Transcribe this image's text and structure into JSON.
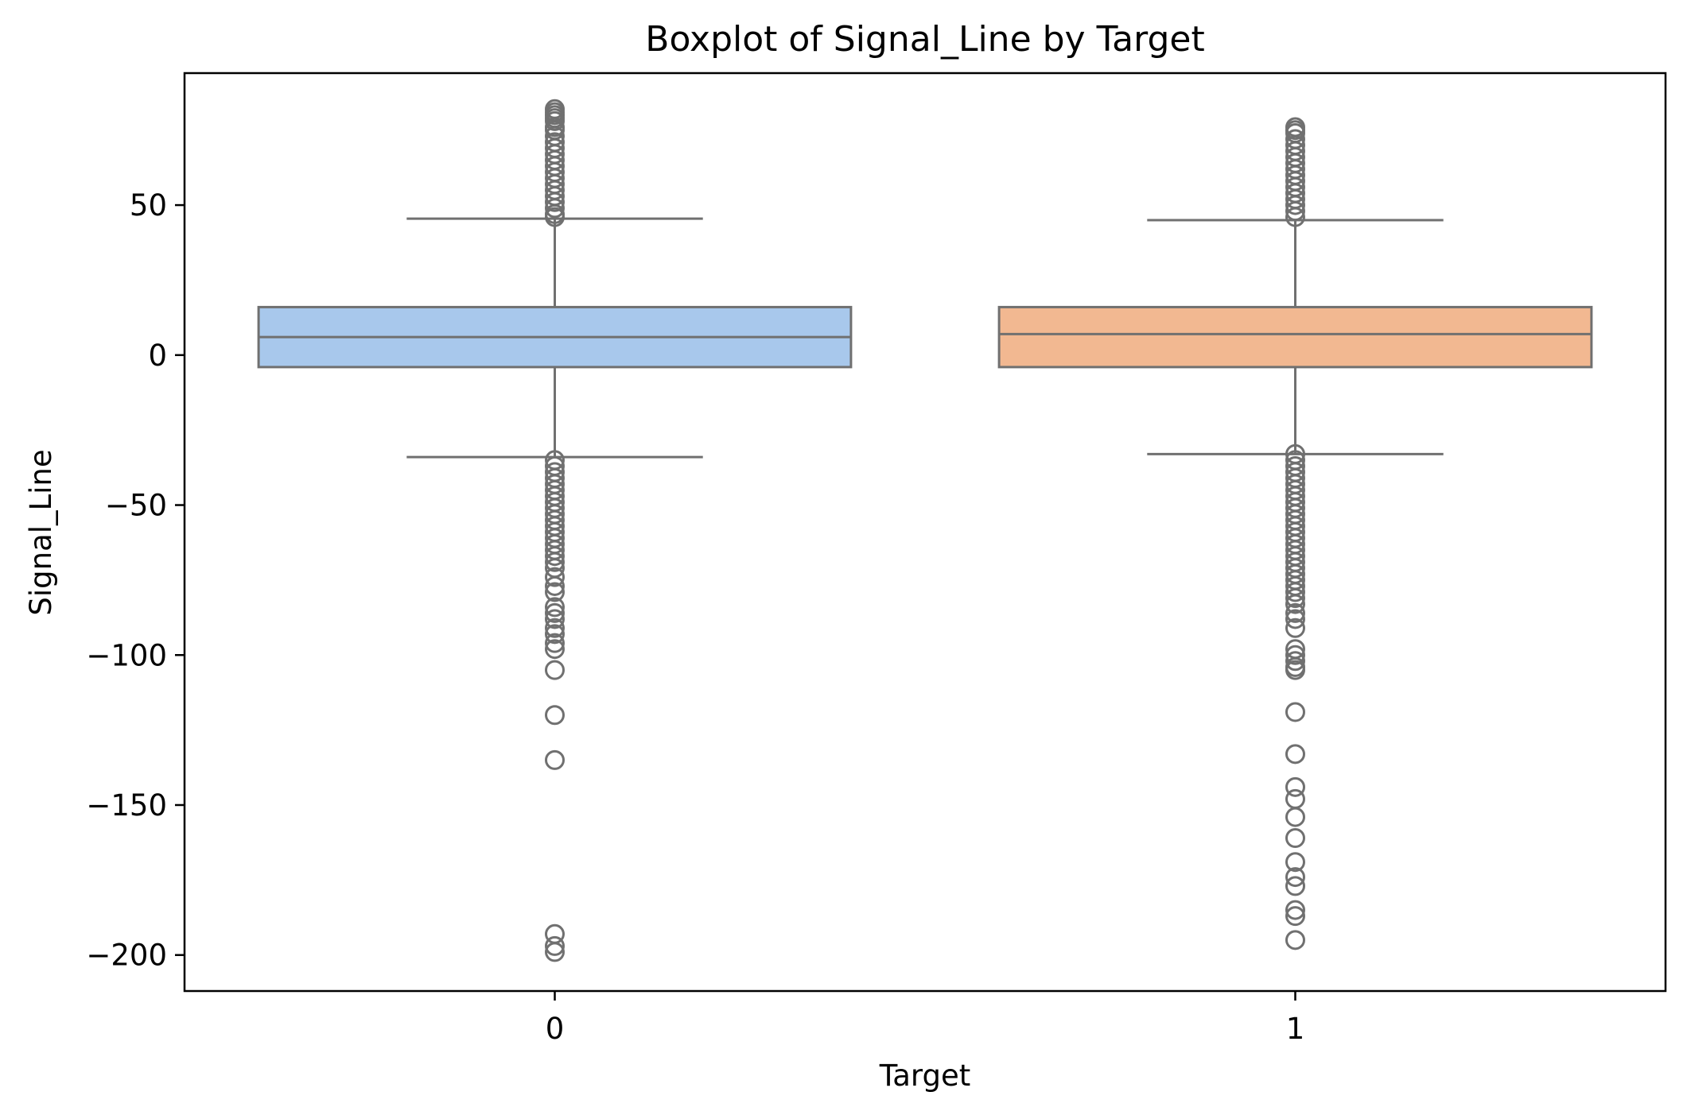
{
  "chart_data": {
    "type": "boxplot",
    "title": "Boxplot of Signal_Line by Target",
    "xlabel": "Target",
    "ylabel": "Signal_Line",
    "ylim": [
      -212,
      94
    ],
    "yticks": [
      50,
      0,
      -50,
      -100,
      -150,
      -200
    ],
    "ytick_labels": [
      "50",
      "0",
      "−50",
      "−100",
      "−150",
      "−200"
    ],
    "categories": [
      "0",
      "1"
    ],
    "grid": false,
    "line_color": "#707070",
    "boxes": [
      {
        "category": "0",
        "color": "#a8c8ec",
        "q1": -4,
        "median": 6,
        "q3": 16,
        "whisker_low": -34,
        "whisker_high": 45.5,
        "outliers": [
          82,
          81,
          80,
          79,
          78,
          76,
          75,
          73,
          71,
          69,
          67,
          65,
          63,
          61,
          59,
          57,
          55,
          53,
          51,
          49,
          47,
          46,
          -35,
          -37,
          -39,
          -41,
          -43,
          -45,
          -47,
          -49,
          -51,
          -53,
          -55,
          -57,
          -59,
          -61,
          -63,
          -65,
          -67,
          -69,
          -71,
          -74,
          -77,
          -79,
          -84,
          -86,
          -88,
          -91,
          -93,
          -96,
          -98,
          -105,
          -120,
          -135,
          -193,
          -197,
          -199
        ]
      },
      {
        "category": "1",
        "color": "#f2b891",
        "q1": -4,
        "median": 7,
        "q3": 16,
        "whisker_low": -33,
        "whisker_high": 45,
        "outliers": [
          76,
          75,
          74,
          72,
          70,
          68,
          66,
          64,
          62,
          60,
          58,
          56,
          54,
          52,
          50,
          48,
          46,
          -33,
          -35,
          -37,
          -39,
          -41,
          -43,
          -45,
          -47,
          -49,
          -51,
          -53,
          -55,
          -57,
          -59,
          -61,
          -63,
          -65,
          -67,
          -69,
          -71,
          -73,
          -75,
          -77,
          -79,
          -81,
          -83,
          -86,
          -88,
          -91,
          -98,
          -100,
          -102,
          -104,
          -105,
          -119,
          -133,
          -144,
          -148,
          -154,
          -161,
          -169,
          -174,
          -177,
          -185,
          -187,
          -195
        ]
      }
    ]
  }
}
